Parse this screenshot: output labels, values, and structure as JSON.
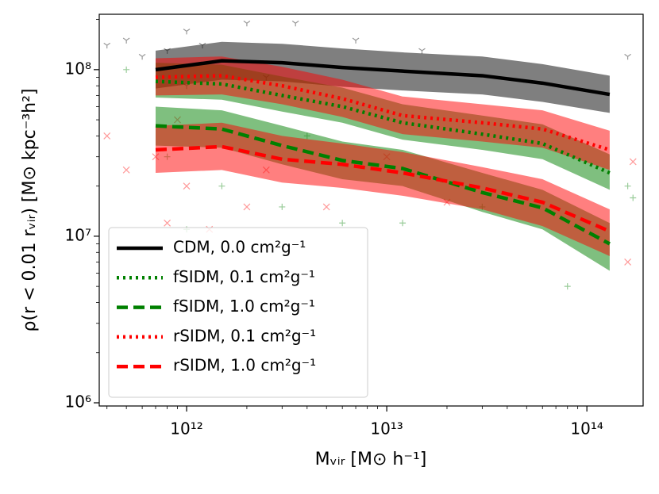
{
  "chart_data": {
    "type": "line",
    "xlabel": "Mᵥᵢᵣ [M⊙ h⁻¹]",
    "ylabel": "ρ(r < 0.01 rᵥᵢᵣ) [M⊙ kpc⁻³h²]",
    "xscale": "log",
    "yscale": "log",
    "xlim": [
      366000000000.0,
      191000000000000.0
    ],
    "ylim": [
      957000.0,
      215000000.0
    ],
    "xticks": [
      {
        "value": 1000000000000.0,
        "label": "10¹²"
      },
      {
        "value": 10000000000000.0,
        "label": "10¹³"
      },
      {
        "value": 100000000000000.0,
        "label": "10¹⁴"
      }
    ],
    "yticks": [
      {
        "value": 1000000.0,
        "label": "10⁶"
      },
      {
        "value": 10000000.0,
        "label": "10⁷"
      },
      {
        "value": 100000000.0,
        "label": "10⁸"
      }
    ],
    "xminorticks": [
      400000000000.0,
      500000000000.0,
      600000000000.0,
      700000000000.0,
      800000000000.0,
      900000000000.0,
      2000000000000.0,
      3000000000000.0,
      4000000000000.0,
      5000000000000.0,
      6000000000000.0,
      7000000000000.0,
      8000000000000.0,
      9000000000000.0,
      20000000000000.0,
      30000000000000.0,
      40000000000000.0,
      50000000000000.0,
      60000000000000.0,
      70000000000000.0,
      80000000000000.0,
      90000000000000.0
    ],
    "yminorticks": [
      2000000.0,
      3000000.0,
      4000000.0,
      5000000.0,
      6000000.0,
      7000000.0,
      8000000.0,
      9000000.0,
      20000000.0,
      30000000.0,
      40000000.0,
      50000000.0,
      60000000.0,
      70000000.0,
      80000000.0,
      90000000.0,
      200000000.0
    ],
    "legend": "lower left",
    "x": [
      700000000000.0,
      1500000000000.0,
      3000000000000.0,
      6000000000000.0,
      12000000000000.0,
      30000000000000.0,
      60000000000000.0,
      130000000000000.0
    ],
    "series": [
      {
        "name": "CDM, 0.0 cm²g⁻¹",
        "color": "#000000",
        "linestyle": "solid",
        "values": [
          100000000.0,
          113000000.0,
          110000000.0,
          103000000.0,
          98000000.0,
          92000000.0,
          83000000.0,
          71000000.0
        ],
        "upper": [
          130000000.0,
          147000000.0,
          143000000.0,
          134000000.0,
          127000000.0,
          120000000.0,
          108000000.0,
          92000000.0
        ],
        "lower": [
          77000000.0,
          87000000.0,
          85000000.0,
          79000000.0,
          75000000.0,
          71000000.0,
          64000000.0,
          55000000.0
        ]
      },
      {
        "name": "fSIDM, 0.1 cm²g⁻¹",
        "color": "#008000",
        "linestyle": "dotted",
        "values": [
          85000000.0,
          82000000.0,
          70000000.0,
          60000000.0,
          48000000.0,
          41000000.0,
          36000000.0,
          24000000.0
        ],
        "upper": [
          110000000.0,
          107000000.0,
          91000000.0,
          78000000.0,
          62000000.0,
          53000000.0,
          47000000.0,
          31000000.0
        ],
        "lower": [
          68000000.0,
          66000000.0,
          56000000.0,
          48000000.0,
          38000000.0,
          33000000.0,
          29000000.0,
          19000000.0
        ]
      },
      {
        "name": "fSIDM, 1.0 cm²g⁻¹",
        "color": "#008000",
        "linestyle": "dashed",
        "values": [
          46000000.0,
          44000000.0,
          35000000.0,
          28500000.0,
          25500000.0,
          18300000.0,
          14800000.0,
          9000000.0
        ],
        "upper": [
          60000000.0,
          57000000.0,
          46000000.0,
          37000000.0,
          33000000.0,
          24000000.0,
          19000000.0,
          12000000.0
        ],
        "lower": [
          35000000.0,
          34000000.0,
          27000000.0,
          22000000.0,
          20000000.0,
          14000000.0,
          11000000.0,
          6200000.0
        ]
      },
      {
        "name": "rSIDM, 0.1 cm²g⁻¹",
        "color": "#ff0000",
        "linestyle": "dotted",
        "values": [
          90000000.0,
          92000000.0,
          80000000.0,
          67000000.0,
          53000000.0,
          48000000.0,
          44000000.0,
          33000000.0
        ],
        "upper": [
          117000000.0,
          120000000.0,
          104000000.0,
          87000000.0,
          69000000.0,
          62000000.0,
          57000000.0,
          43000000.0
        ],
        "lower": [
          70000000.0,
          71000000.0,
          62000000.0,
          52000000.0,
          41000000.0,
          37000000.0,
          34000000.0,
          25000000.0
        ]
      },
      {
        "name": "rSIDM, 1.0 cm²g⁻¹",
        "color": "#ff0000",
        "linestyle": "dashed",
        "values": [
          33000000.0,
          34500000.0,
          29000000.0,
          27000000.0,
          24000000.0,
          19500000.0,
          16000000.0,
          10700000.0
        ],
        "upper": [
          46000000.0,
          48000000.0,
          40000000.0,
          36000000.0,
          32000000.0,
          26000000.0,
          22000000.0,
          14500000.0
        ],
        "lower": [
          24000000.0,
          25000000.0,
          21000000.0,
          19500000.0,
          17500000.0,
          14500000.0,
          11500000.0,
          7600000.0
        ]
      }
    ],
    "scatter": [
      {
        "color": "#000000",
        "marker": "tri",
        "x": [
          500000000000.0,
          1000000000000.0,
          2000000000000.0,
          3500000000000.0,
          800000000000.0,
          1200000000000.0,
          400000000000.0,
          7000000000000.0,
          15000000000000.0,
          600000000000.0,
          160000000000000.0,
          1000000000000.0,
          2500000000000.0
        ],
        "y": [
          150000000.0,
          170000000.0,
          190000000.0,
          190000000.0,
          130000000.0,
          140000000.0,
          140000000.0,
          150000000.0,
          130000000.0,
          120000000.0,
          120000000.0,
          80000000.0,
          90000000.0
        ]
      },
      {
        "color": "#008000",
        "marker": "plus",
        "x": [
          500000000000.0,
          800000000000.0,
          1500000000000.0,
          3000000000000.0,
          6000000000000.0,
          12000000000000.0,
          30000000000000.0,
          80000000000000.0,
          170000000000000.0,
          160000000000000.0,
          1000000000000.0,
          4000000000000.0
        ],
        "y": [
          100000000.0,
          30000000.0,
          20000000.0,
          15000000.0,
          12000000.0,
          12000000.0,
          15000000.0,
          5000000.0,
          17000000.0,
          20000000.0,
          11000000.0,
          40000000.0
        ]
      },
      {
        "color": "#ff0000",
        "marker": "cross",
        "x": [
          400000000000.0,
          500000000000.0,
          800000000000.0,
          1000000000000.0,
          1300000000000.0,
          2000000000000.0,
          2500000000000.0,
          5000000000000.0,
          10000000000000.0,
          20000000000000.0,
          160000000000000.0,
          170000000000000.0,
          700000000000.0,
          900000000000.0
        ],
        "y": [
          40000000.0,
          25000000.0,
          12000000.0,
          20000000.0,
          11000000.0,
          15000000.0,
          25000000.0,
          15000000.0,
          30000000.0,
          16000000.0,
          7000000.0,
          28000000.0,
          30000000.0,
          50000000.0
        ]
      }
    ]
  }
}
